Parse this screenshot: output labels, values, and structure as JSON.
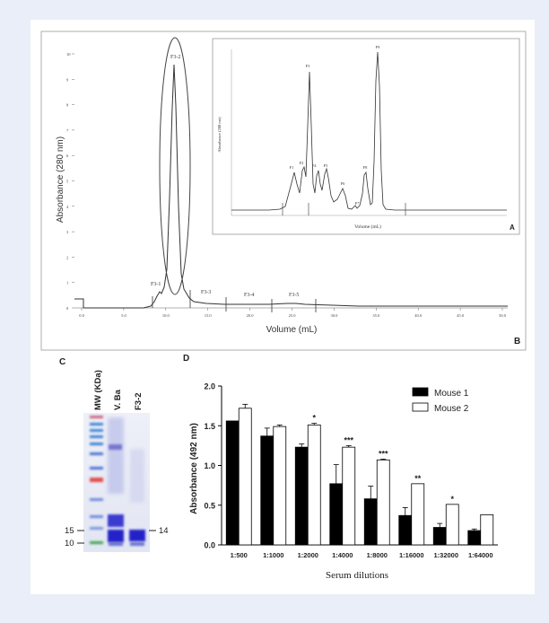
{
  "colors": {
    "page_bg": "#e9eef8",
    "panel_bg": "#ffffff",
    "trace": "#333333",
    "bar_mouse1": "#000000",
    "bar_mouse2": "#ffffff"
  },
  "panel_ab": {
    "main_ylabel": "Absorbance (280 nm)",
    "main_xlabel": "Volume (mL)",
    "panel_letter": "B",
    "main_yticks": [
      "10",
      "9",
      "8",
      "7",
      "6",
      "5",
      "4",
      "3",
      "2",
      "1",
      "0"
    ],
    "main_xticks": [
      "0.0",
      "5.0",
      "10.0",
      "15.0",
      "20.0",
      "25.0",
      "30.0",
      "35.0",
      "40.0",
      "45.0",
      "50.0"
    ],
    "fraction_labels": [
      "F3-1",
      "F3-2",
      "F3-3",
      "F3-4",
      "F3-5"
    ],
    "inset": {
      "panel_letter": "A",
      "xlabel": "Volume (mL)",
      "ylabel": "Absorbance (280 nm)",
      "peak_labels": [
        "F1",
        "F2",
        "F3",
        "F4",
        "F5",
        "F6",
        "F7",
        "F8",
        "F9"
      ]
    }
  },
  "panel_c": {
    "panel_letter": "C",
    "lane_labels": [
      "MW (KDa)",
      "V. Ba",
      "F3-2"
    ],
    "mw_labels": [
      "15",
      "10"
    ],
    "band_label": "14"
  },
  "panel_d": {
    "panel_letter": "D"
  },
  "chart_data": {
    "type": "bar",
    "title": "",
    "xlabel": "Serum dilutions",
    "ylabel": "Absorbance (492 nm)",
    "ylim": [
      0,
      2.0
    ],
    "yticks": [
      "0.0",
      "0.5",
      "1.0",
      "1.5",
      "2.0"
    ],
    "categories": [
      "1:500",
      "1:1000",
      "1:2000",
      "1:4000",
      "1:8000",
      "1:16000",
      "1:32000",
      "1:64000"
    ],
    "series": [
      {
        "name": "Mouse 1",
        "values": [
          1.56,
          1.37,
          1.23,
          0.77,
          0.58,
          0.37,
          0.22,
          0.18
        ],
        "errors": [
          0.0,
          0.1,
          0.04,
          0.24,
          0.16,
          0.1,
          0.05,
          0.02
        ]
      },
      {
        "name": "Mouse 2",
        "values": [
          1.72,
          1.49,
          1.51,
          1.23,
          1.07,
          0.77,
          0.51,
          0.38
        ],
        "errors": [
          0.05,
          0.02,
          0.02,
          0.02,
          0.01,
          0.0,
          0.0,
          0.0
        ]
      }
    ],
    "significance": [
      "",
      "",
      "*",
      "***",
      "***",
      "**",
      "*",
      ""
    ],
    "legend": "top-right"
  }
}
